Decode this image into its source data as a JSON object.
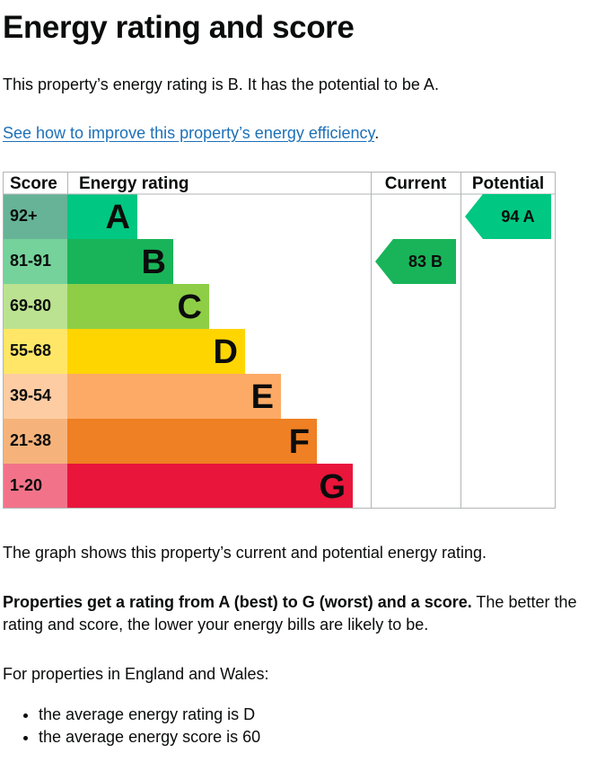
{
  "page": {
    "title": "Energy rating and score",
    "intro": "This property’s energy rating is B. It has the potential to be A.",
    "improve_link": "See how to improve this property’s energy efficiency",
    "improve_link_suffix": ".",
    "graph_caption": "The graph shows this property’s current and potential energy rating.",
    "rating_bold": "Properties get a rating from A (best) to G (worst) and a score.",
    "rating_rest": " The better the rating and score, the lower your energy bills are likely to be.",
    "region_intro": "For properties in England and Wales:",
    "bullets": [
      "the average energy rating is D",
      "the average energy score is 60"
    ]
  },
  "chart_data": {
    "type": "bar",
    "headers": {
      "score": "Score",
      "rating": "Energy rating",
      "current": "Current",
      "potential": "Potential"
    },
    "bands": [
      {
        "band": "A",
        "score_range": "92+",
        "color": "#008054",
        "score_color": "#66b398"
      },
      {
        "band": "B",
        "score_range": "81-91",
        "color": "#19b459",
        "score_color": "#75d29b"
      },
      {
        "band": "C",
        "score_range": "69-80",
        "color": "#8dce46",
        "score_color": "#bbe290"
      },
      {
        "band": "D",
        "score_range": "55-68",
        "color": "#ffd500",
        "score_color": "#ffe666"
      },
      {
        "band": "E",
        "score_range": "39-54",
        "color": "#fcaa65",
        "score_color": "#fdcca3"
      },
      {
        "band": "F",
        "score_range": "21-38",
        "color": "#ef8023",
        "score_color": "#f5b37b"
      },
      {
        "band": "G",
        "score_range": "1-20",
        "color": "#e9153b",
        "score_color": "#f27389"
      }
    ],
    "band_a_color_as_rendered": "#00c781",
    "current": {
      "score": 83,
      "band": "B",
      "label": "83  B"
    },
    "potential": {
      "score": 94,
      "band": "A",
      "label": "94  A"
    }
  }
}
